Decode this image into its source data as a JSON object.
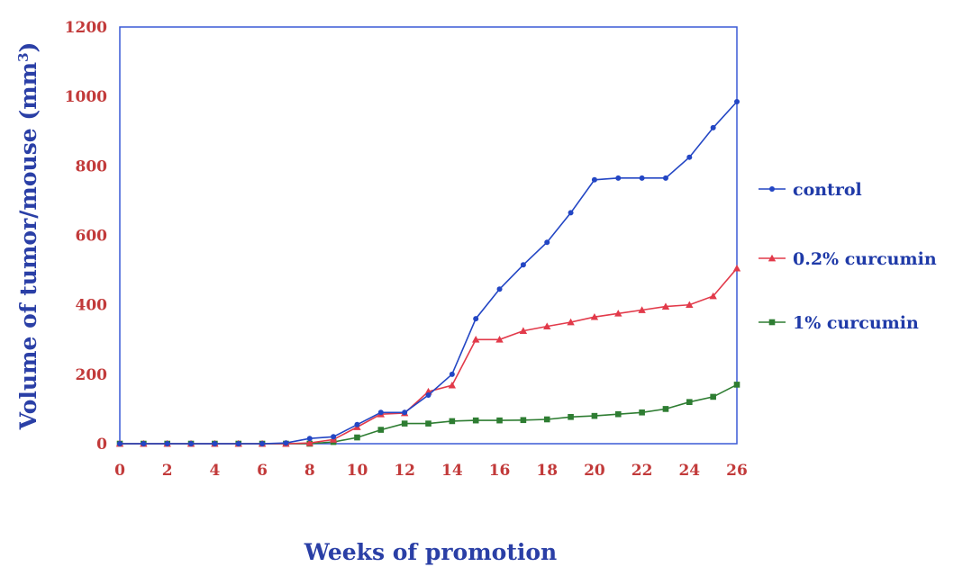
{
  "chart_data": {
    "type": "line",
    "title": "",
    "xlabel": "Weeks of promotion",
    "ylabel": "Volume of tumor/mouse (mm",
    "ylabel_sup": "3",
    "ylabel_suffix": ")",
    "xlim": [
      0,
      26
    ],
    "ylim": [
      0,
      1200
    ],
    "x_ticks": [
      0,
      2,
      4,
      6,
      8,
      10,
      12,
      14,
      16,
      18,
      20,
      22,
      24,
      26
    ],
    "y_ticks": [
      0,
      200,
      400,
      600,
      800,
      1000,
      1200
    ],
    "grid": false,
    "legend_position": "right",
    "x": [
      0,
      1,
      2,
      3,
      4,
      5,
      6,
      7,
      8,
      9,
      10,
      11,
      12,
      13,
      14,
      15,
      16,
      17,
      18,
      19,
      20,
      21,
      22,
      23,
      24,
      25,
      26
    ],
    "series": [
      {
        "name": "control",
        "color": "#2346c4",
        "marker": "circle",
        "values": [
          0,
          0,
          0,
          0,
          0,
          0,
          0,
          2,
          15,
          20,
          55,
          90,
          90,
          140,
          200,
          360,
          445,
          515,
          580,
          665,
          760,
          765,
          765,
          765,
          825,
          910,
          985
        ]
      },
      {
        "name": "0.2% curcumin",
        "color": "#e23a4a",
        "marker": "triangle",
        "values": [
          0,
          0,
          0,
          0,
          0,
          0,
          0,
          0,
          2,
          12,
          48,
          85,
          88,
          150,
          168,
          300,
          300,
          325,
          338,
          350,
          365,
          375,
          385,
          395,
          400,
          425,
          505
        ]
      },
      {
        "name": "1% curcumin",
        "color": "#2e7d32",
        "marker": "square",
        "values": [
          0,
          0,
          0,
          0,
          0,
          0,
          0,
          0,
          0,
          5,
          18,
          40,
          58,
          58,
          65,
          67,
          67,
          68,
          70,
          77,
          80,
          85,
          90,
          100,
          120,
          135,
          170
        ]
      }
    ]
  },
  "colors": {
    "frame": "#3a5ad6",
    "tick_labels": "#c23a3a",
    "axis_titles": "#2a3fa6"
  }
}
